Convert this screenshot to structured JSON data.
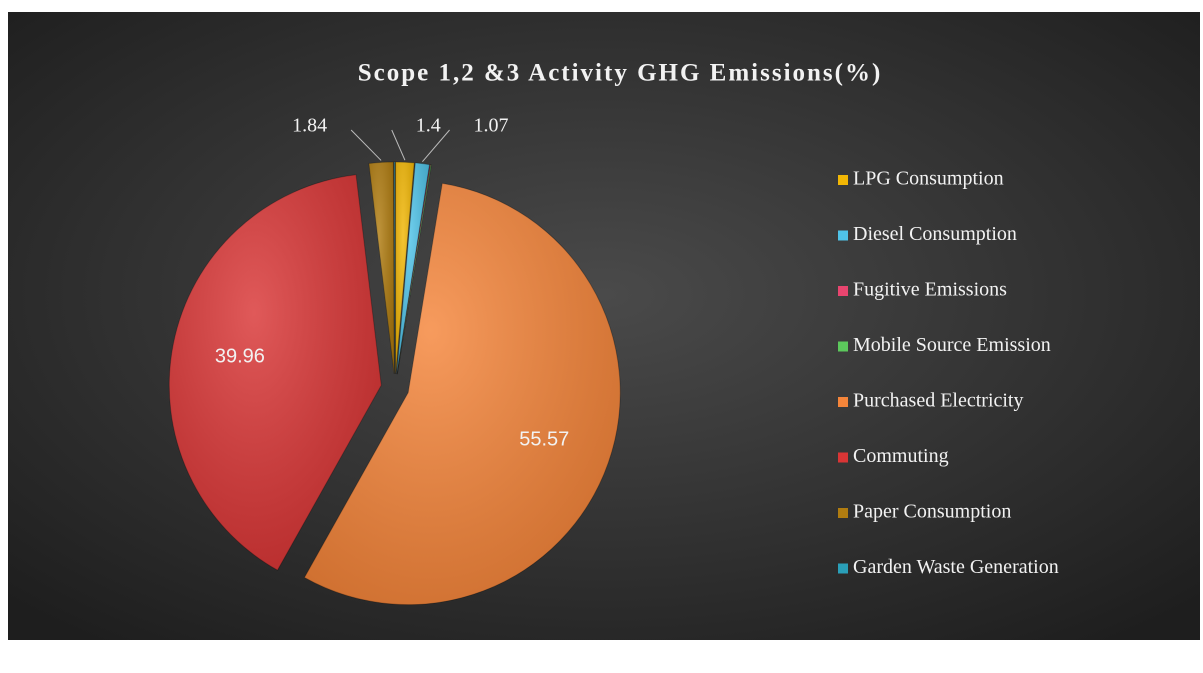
{
  "chart_data": {
    "type": "pie",
    "title": "Scope 1,2 &3 Activity GHG  Emissions(%)",
    "categories": [
      "LPG Consumption",
      "Diesel Consumption",
      "Fugitive Emissions",
      "Mobile Source Emission",
      "Purchased Electricity",
      "Commuting",
      "Paper Consumption",
      "Garden Waste Generation"
    ],
    "values": [
      1.4,
      1.07,
      0.05,
      0.05,
      55.57,
      39.96,
      1.84,
      0.06
    ],
    "value_labels": [
      "1.4",
      "1.07",
      null,
      null,
      "55.57",
      "39.96",
      "1.84",
      null
    ],
    "colors": [
      "#f2b705",
      "#4fc3e8",
      "#e8456f",
      "#5cc85c",
      "#f5853a",
      "#d93535",
      "#b07c10",
      "#2a9fb8"
    ],
    "legend": "right"
  }
}
